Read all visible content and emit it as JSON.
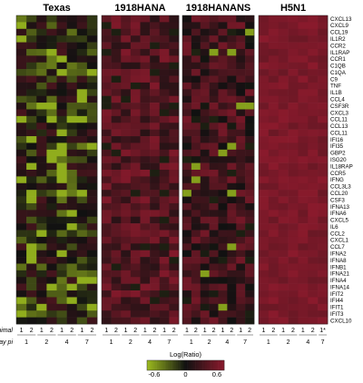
{
  "chart_data": {
    "type": "heatmap",
    "panels": [
      "Texas",
      "1918HANA",
      "1918HANANS",
      "H5N1"
    ],
    "genes": [
      "CXCL13",
      "CXCL9",
      "CCL19",
      "IL1R2",
      "CCR2",
      "IL1RAP",
      "CCR1",
      "C1QB",
      "C1QA",
      "C9",
      "TNF",
      "IL1B",
      "CCL4",
      "CSF3R",
      "CXCL3",
      "CCL11",
      "CCL13",
      "CCL11",
      "IFI16",
      "IFI35",
      "GBP2",
      "ISG20",
      "IL18RAP",
      "CCR5",
      "IFNG",
      "CCL3L3",
      "CCL20",
      "CSF3",
      "IFNA13",
      "IFNA6",
      "CXCL5",
      "IL6",
      "CCL2",
      "CXCL1",
      "CCL7",
      "IFNA2",
      "IFNA8",
      "IFNB1",
      "IFNA21",
      "IFNA4",
      "IFNA14",
      "IFIT2",
      "IFI44",
      "IFIT1",
      "IFIT3",
      "CXCL10"
    ],
    "column_labels": {
      "row1_name": "Animal",
      "row2_name": "Day pi",
      "standard": {
        "animal": [
          "1",
          "2",
          "1",
          "2",
          "1",
          "2",
          "1",
          "2"
        ],
        "day": [
          "1",
          "2",
          "4",
          "7"
        ]
      },
      "h5n1": {
        "animal": [
          "1",
          "2",
          "1",
          "2",
          "1",
          "2",
          "1*"
        ],
        "day": [
          "1",
          "2",
          "4",
          "7"
        ]
      }
    },
    "colorbar": {
      "title": "Log(Ratio)",
      "min": -0.6,
      "max": 0.6,
      "ticks": [
        "-0.6",
        "0",
        "0.6"
      ],
      "colors": {
        "low": "#9cbb1e",
        "mid": "#111111",
        "high": "#8a1a2c"
      }
    },
    "values_note": "",
    "panel_profile": {
      "Texas": {
        "mean": -0.05,
        "spread": 0.32
      },
      "1918HANA": {
        "mean": 0.34,
        "spread": 0.22
      },
      "1918HANANS": {
        "mean": 0.22,
        "spread": 0.28
      },
      "H5N1": {
        "mean": 0.52,
        "spread": 0.08
      }
    }
  }
}
